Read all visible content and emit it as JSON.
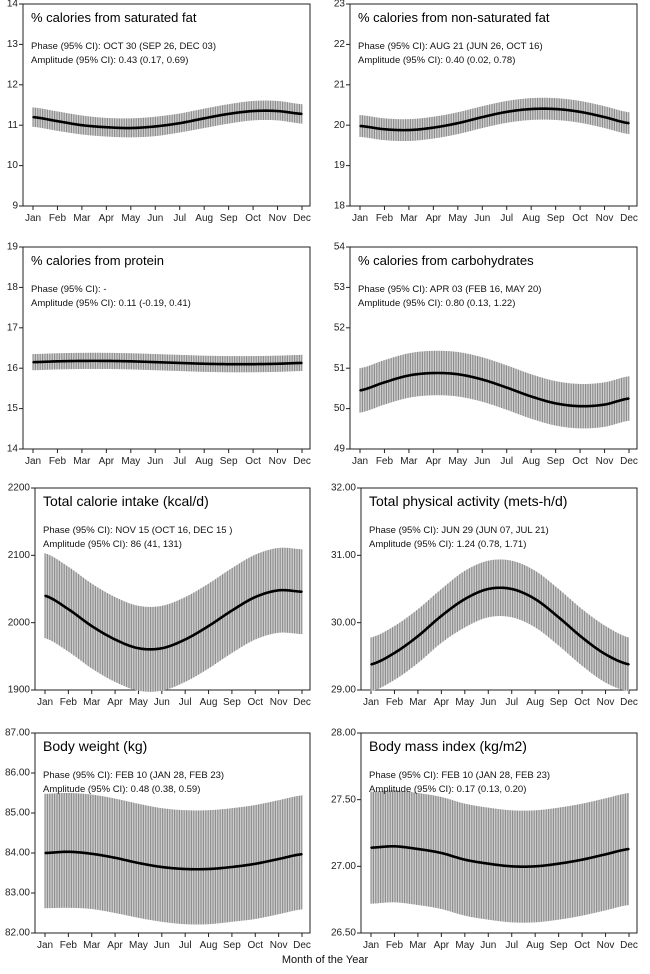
{
  "months": [
    "Jan",
    "Feb",
    "Mar",
    "Apr",
    "May",
    "Jun",
    "Jul",
    "Aug",
    "Sep",
    "Oct",
    "Nov",
    "Dec"
  ],
  "xlabel": "Month of the Year",
  "chart_data": [
    {
      "type": "line",
      "title": "% calories from saturated fat",
      "phase_text": "Phase (95% CI): OCT 30 (SEP 26, DEC 03)",
      "amplitude_text": "Amplitude (95% CI): 0.43 (0.17, 0.69)",
      "ylim": [
        9,
        14
      ],
      "yticks": [
        9,
        10,
        11,
        12,
        13,
        14
      ],
      "x": [
        "Jan",
        "Feb",
        "Mar",
        "Apr",
        "May",
        "Jun",
        "Jul",
        "Aug",
        "Sep",
        "Oct",
        "Nov",
        "Dec"
      ],
      "series": [
        {
          "values": [
            11.2,
            11.1,
            11.0,
            10.95,
            10.93,
            10.97,
            11.05,
            11.17,
            11.28,
            11.35,
            11.35,
            11.28
          ]
        },
        {
          "values": [
            11.44,
            11.34,
            11.24,
            11.18,
            11.17,
            11.21,
            11.29,
            11.41,
            11.52,
            11.6,
            11.6,
            11.52
          ]
        },
        {
          "values": [
            10.96,
            10.86,
            10.77,
            10.72,
            10.7,
            10.73,
            10.82,
            10.93,
            11.04,
            11.12,
            11.12,
            11.04
          ]
        }
      ]
    },
    {
      "type": "line",
      "title": "% calories from non-saturated fat",
      "phase_text": "Phase (95% CI): AUG 21 (JUN 26, OCT 16)",
      "amplitude_text": "Amplitude (95% CI): 0.40 (0.02, 0.78)",
      "ylim": [
        18,
        23
      ],
      "yticks": [
        18,
        19,
        20,
        21,
        22,
        23
      ],
      "x": [
        "Jan",
        "Feb",
        "Mar",
        "Apr",
        "May",
        "Jun",
        "Jul",
        "Aug",
        "Sep",
        "Oct",
        "Nov",
        "Dec"
      ],
      "series": [
        {
          "values": [
            19.98,
            19.9,
            19.88,
            19.94,
            20.05,
            20.2,
            20.33,
            20.4,
            20.4,
            20.33,
            20.2,
            20.05
          ]
        },
        {
          "values": [
            20.25,
            20.17,
            20.15,
            20.21,
            20.32,
            20.47,
            20.6,
            20.67,
            20.67,
            20.6,
            20.47,
            20.32
          ]
        },
        {
          "values": [
            19.71,
            19.63,
            19.61,
            19.67,
            19.78,
            19.93,
            20.06,
            20.13,
            20.13,
            20.06,
            19.93,
            19.78
          ]
        }
      ]
    },
    {
      "type": "line",
      "title": "% calories from protein",
      "phase_text": "Phase (95% CI): -",
      "amplitude_text": "Amplitude (95% CI): 0.11 (-0.19, 0.41)",
      "ylim": [
        14,
        19
      ],
      "yticks": [
        14,
        15,
        16,
        17,
        18,
        19
      ],
      "x": [
        "Jan",
        "Feb",
        "Mar",
        "Apr",
        "May",
        "Jun",
        "Jul",
        "Aug",
        "Sep",
        "Oct",
        "Nov",
        "Dec"
      ],
      "series": [
        {
          "values": [
            16.15,
            16.17,
            16.18,
            16.18,
            16.17,
            16.15,
            16.13,
            16.11,
            16.1,
            16.1,
            16.11,
            16.13
          ]
        },
        {
          "values": [
            16.35,
            16.37,
            16.38,
            16.38,
            16.37,
            16.35,
            16.33,
            16.31,
            16.3,
            16.3,
            16.31,
            16.33
          ]
        },
        {
          "values": [
            15.95,
            15.97,
            15.98,
            15.98,
            15.97,
            15.95,
            15.93,
            15.91,
            15.9,
            15.9,
            15.91,
            15.93
          ]
        }
      ]
    },
    {
      "type": "line",
      "title": "% calories from carbohydrates",
      "phase_text": "Phase (95% CI): APR 03 (FEB 16, MAY 20)",
      "amplitude_text": "Amplitude (95% CI): 0.80 (0.13, 1.22)",
      "ylim": [
        49,
        54
      ],
      "yticks": [
        49,
        50,
        51,
        52,
        53,
        54
      ],
      "x": [
        "Jan",
        "Feb",
        "Mar",
        "Apr",
        "May",
        "Jun",
        "Jul",
        "Aug",
        "Sep",
        "Oct",
        "Nov",
        "Dec"
      ],
      "series": [
        {
          "values": [
            50.45,
            50.65,
            50.82,
            50.88,
            50.85,
            50.72,
            50.52,
            50.3,
            50.13,
            50.06,
            50.1,
            50.25
          ]
        },
        {
          "values": [
            51.0,
            51.2,
            51.37,
            51.43,
            51.4,
            51.27,
            51.07,
            50.85,
            50.68,
            50.61,
            50.65,
            50.8
          ]
        },
        {
          "values": [
            49.9,
            50.1,
            50.27,
            50.33,
            50.3,
            50.17,
            49.97,
            49.75,
            49.58,
            49.51,
            49.55,
            49.7
          ]
        }
      ]
    },
    {
      "type": "line",
      "title": "Total calorie intake (kcal/d)",
      "phase_text": "Phase (95% CI): NOV 15 (OCT 16, DEC 15 )",
      "amplitude_text": "Amplitude (95% CI): 86 (41, 131)",
      "ylim": [
        1900,
        2200
      ],
      "yticks": [
        1900,
        2000,
        2100,
        2200
      ],
      "x": [
        "Jan",
        "Feb",
        "Mar",
        "Apr",
        "May",
        "Jun",
        "Jul",
        "Aug",
        "Sep",
        "Oct",
        "Nov",
        "Dec"
      ],
      "series": [
        {
          "values": [
            2040,
            2020,
            1995,
            1975,
            1962,
            1962,
            1975,
            1995,
            2018,
            2038,
            2048,
            2046
          ]
        },
        {
          "values": [
            2103,
            2083,
            2058,
            2038,
            2025,
            2025,
            2038,
            2058,
            2081,
            2101,
            2111,
            2109
          ]
        },
        {
          "values": [
            1977,
            1957,
            1932,
            1912,
            1899,
            1899,
            1912,
            1932,
            1955,
            1975,
            1985,
            1983
          ]
        }
      ]
    },
    {
      "type": "line",
      "title": "Total physical activity (mets-h/d)",
      "phase_text": "Phase (95% CI): JUN 29 (JUN 07, JUL 21)",
      "amplitude_text": "Amplitude (95% CI): 1.24 (0.78, 1.71)",
      "ylim": [
        29.0,
        32.0
      ],
      "yticks": [
        29.0,
        30.0,
        31.0,
        32.0
      ],
      "x": [
        "Jan",
        "Feb",
        "Mar",
        "Apr",
        "May",
        "Jun",
        "Jul",
        "Aug",
        "Sep",
        "Oct",
        "Nov",
        "Dec"
      ],
      "series": [
        {
          "values": [
            29.38,
            29.55,
            29.8,
            30.1,
            30.35,
            30.5,
            30.5,
            30.35,
            30.08,
            29.78,
            29.53,
            29.38
          ]
        },
        {
          "values": [
            29.78,
            29.95,
            30.2,
            30.5,
            30.77,
            30.92,
            30.92,
            30.77,
            30.5,
            30.2,
            29.95,
            29.78
          ]
        },
        {
          "values": [
            28.98,
            29.15,
            29.4,
            29.7,
            29.93,
            30.08,
            30.08,
            29.93,
            29.66,
            29.36,
            29.11,
            28.98
          ]
        }
      ]
    },
    {
      "type": "line",
      "title": "Body weight (kg)",
      "phase_text": "Phase (95% CI): FEB 10 (JAN 28, FEB 23)",
      "amplitude_text": "Amplitude (95% CI): 0.48 (0.38, 0.59)",
      "ylim": [
        82.0,
        87.0
      ],
      "yticks": [
        82.0,
        83.0,
        84.0,
        85.0,
        86.0,
        87.0
      ],
      "x": [
        "Jan",
        "Feb",
        "Mar",
        "Apr",
        "May",
        "Jun",
        "Jul",
        "Aug",
        "Sep",
        "Oct",
        "Nov",
        "Dec"
      ],
      "series": [
        {
          "values": [
            84.0,
            84.03,
            83.98,
            83.88,
            83.75,
            83.65,
            83.6,
            83.6,
            83.65,
            83.73,
            83.85,
            83.97
          ]
        },
        {
          "values": [
            85.48,
            85.5,
            85.46,
            85.36,
            85.23,
            85.12,
            85.07,
            85.07,
            85.12,
            85.2,
            85.32,
            85.44
          ]
        },
        {
          "values": [
            82.62,
            82.63,
            82.6,
            82.5,
            82.38,
            82.28,
            82.22,
            82.22,
            82.28,
            82.35,
            82.47,
            82.59
          ]
        }
      ]
    },
    {
      "type": "line",
      "title": "Body mass index (kg/m2)",
      "phase_text": "Phase (95% CI): FEB 10 (JAN 28, FEB 23)",
      "amplitude_text": "Amplitude (95% CI): 0.17 (0.13, 0.20)",
      "ylim": [
        26.5,
        28.0
      ],
      "yticks": [
        26.5,
        27.0,
        27.5,
        28.0
      ],
      "x": [
        "Jan",
        "Feb",
        "Mar",
        "Apr",
        "May",
        "Jun",
        "Jul",
        "Aug",
        "Sep",
        "Oct",
        "Nov",
        "Dec"
      ],
      "series": [
        {
          "values": [
            27.14,
            27.15,
            27.13,
            27.1,
            27.05,
            27.02,
            27.0,
            27.0,
            27.02,
            27.05,
            27.09,
            27.13
          ]
        },
        {
          "values": [
            27.56,
            27.57,
            27.55,
            27.52,
            27.47,
            27.44,
            27.42,
            27.42,
            27.44,
            27.47,
            27.51,
            27.55
          ]
        },
        {
          "values": [
            26.72,
            26.73,
            26.71,
            26.68,
            26.63,
            26.6,
            26.58,
            26.58,
            26.6,
            26.63,
            26.67,
            26.71
          ]
        }
      ]
    }
  ]
}
